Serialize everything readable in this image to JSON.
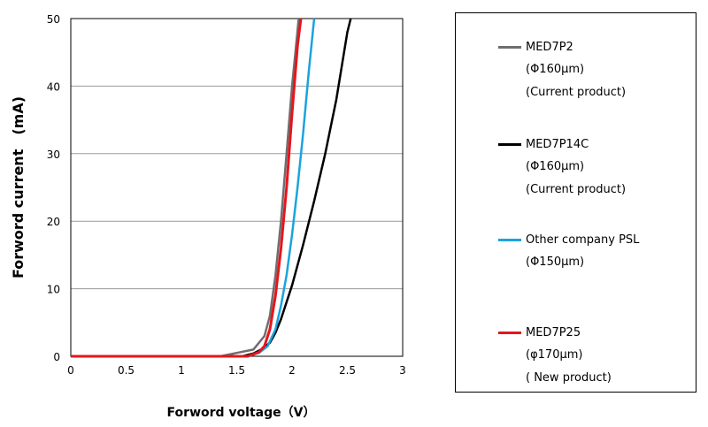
{
  "chart_data": {
    "type": "line",
    "xlabel": "Forword voltage（V）",
    "ylabel": "Forword current　(mA)",
    "xlim": [
      0,
      3
    ],
    "ylim": [
      0,
      50
    ],
    "xticks": [
      0,
      0.5,
      1,
      1.5,
      2,
      2.5,
      3
    ],
    "xtick_labels": [
      "0",
      "0.5",
      "1",
      "1.5",
      "2",
      "2.5",
      "3"
    ],
    "yticks": [
      0,
      10,
      20,
      30,
      40,
      50
    ],
    "ytick_labels": [
      "0",
      "10",
      "20",
      "30",
      "40",
      "50"
    ],
    "grid": "horizontal",
    "legend_position": "right",
    "series": [
      {
        "name": "MED7P2",
        "legend_lines": [
          "MED7P2",
          "(Φ160μm)",
          "(Current product)"
        ],
        "color": "#6e6e6e",
        "x": [
          0,
          1.35,
          1.5,
          1.65,
          1.75,
          1.8,
          1.85,
          1.9,
          1.95,
          2.0,
          2.03,
          2.06
        ],
        "y": [
          0,
          0,
          0.5,
          1,
          3,
          6,
          12,
          20,
          30,
          40,
          45,
          50
        ]
      },
      {
        "name": "MED7P14C",
        "legend_lines": [
          "MED7P14C",
          "(Φ160μm)",
          "(Current product)"
        ],
        "color": "#000000",
        "x": [
          0,
          1.55,
          1.65,
          1.72,
          1.8,
          1.85,
          1.9,
          2.0,
          2.1,
          2.2,
          2.3,
          2.4,
          2.5,
          2.53
        ],
        "y": [
          0,
          0,
          0.4,
          1,
          2,
          3.5,
          5.5,
          10.5,
          16.5,
          23,
          30,
          38,
          48,
          50
        ]
      },
      {
        "name": "Other company PSL",
        "legend_lines": [
          "Other company PSL",
          "(Φ150μm)"
        ],
        "color": "#1aa3de",
        "x": [
          0,
          1.6,
          1.7,
          1.78,
          1.85,
          1.9,
          1.95,
          2.0,
          2.05,
          2.1,
          2.15,
          2.2
        ],
        "y": [
          0,
          0,
          0.5,
          1.5,
          4,
          7.5,
          12,
          18,
          25,
          33,
          42,
          50
        ]
      },
      {
        "name": "MED7P25",
        "legend_lines": [
          "MED7P25",
          "(φ170μm)",
          "( New product)"
        ],
        "color": "#e8141c",
        "x": [
          0,
          1.6,
          1.7,
          1.75,
          1.8,
          1.85,
          1.9,
          1.95,
          2.0,
          2.05,
          2.08
        ],
        "y": [
          0,
          0,
          0.6,
          1.5,
          4,
          9,
          16,
          25,
          36,
          46,
          50
        ]
      }
    ]
  }
}
